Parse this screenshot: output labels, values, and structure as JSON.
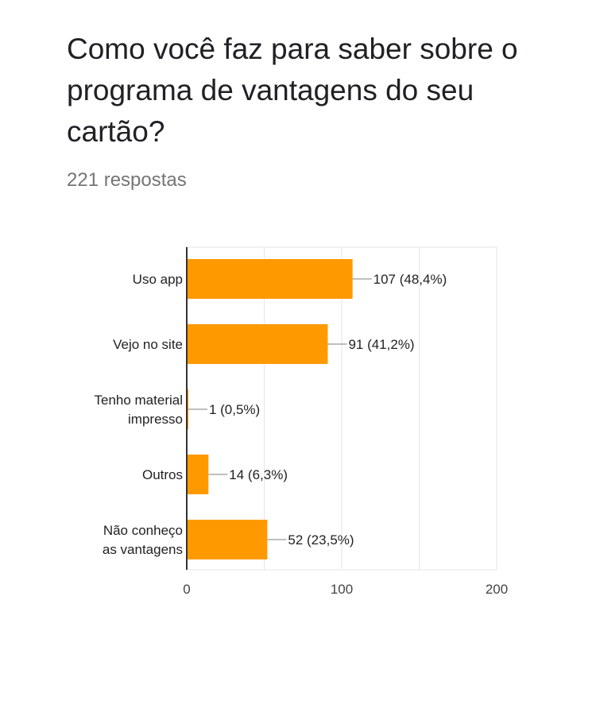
{
  "question": {
    "title": "Como você faz para saber sobre o programa de vantagens do seu cartão?",
    "responses": "221 respostas"
  },
  "colors": {
    "bar": "#ff9900",
    "axis": "#333333",
    "grid": "#e6e6e6",
    "leader": "#999999",
    "text": "#222222",
    "tick": "#444444"
  },
  "chart_data": {
    "type": "bar",
    "orientation": "horizontal",
    "categories": [
      [
        "Uso app"
      ],
      [
        "Vejo no site"
      ],
      [
        "Tenho material",
        "impresso"
      ],
      [
        "Outros"
      ],
      [
        "Não conheço",
        "as vantagens"
      ]
    ],
    "values": [
      107,
      91,
      1,
      14,
      52
    ],
    "data_labels": [
      "107 (48,4%)",
      "91 (41,2%)",
      "1 (0,5%)",
      "14 (6,3%)",
      "52 (23,5%)"
    ],
    "xlim": [
      0,
      200
    ],
    "xticks": [
      0,
      100,
      200
    ],
    "grid": true,
    "legend": "none"
  }
}
